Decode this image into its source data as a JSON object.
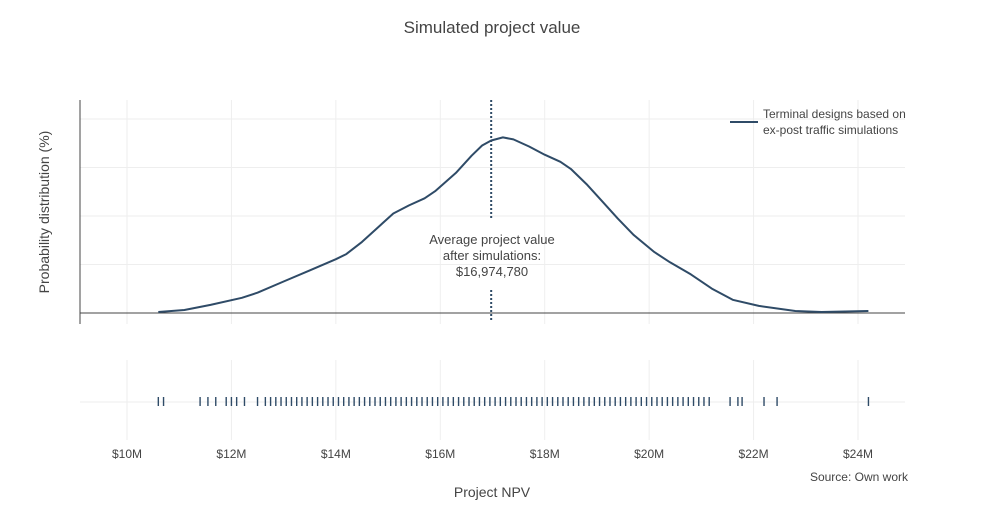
{
  "chart_data": {
    "type": "line",
    "title": "Simulated project value",
    "xlabel": "Project NPV",
    "ylabel": "Probability distribution (%)",
    "xlim": [
      9100000,
      24900000
    ],
    "ylim": [
      0,
      1
    ],
    "x_ticks": [
      10000000,
      12000000,
      14000000,
      16000000,
      18000000,
      20000000,
      22000000,
      24000000
    ],
    "x_tick_labels": [
      "$10M",
      "$12M",
      "$14M",
      "$16M",
      "$18M",
      "$20M",
      "$22M",
      "$24M"
    ],
    "y_tick_labels_visible": false,
    "grid": true,
    "legend_position": "top-right",
    "line_color": "#2f4b67",
    "series": [
      {
        "name": "Terminal designs based on ex-post traffic simulations",
        "x": [
          10600000,
          11100000,
          11600000,
          12200000,
          12500000,
          13000000,
          13500000,
          14000000,
          14200000,
          14500000,
          14800000,
          15100000,
          15400000,
          15700000,
          15900000,
          16300000,
          16600000,
          16800000,
          16974780,
          17200000,
          17400000,
          17700000,
          18000000,
          18300000,
          18500000,
          18800000,
          19100000,
          19400000,
          19700000,
          20100000,
          20400000,
          20800000,
          21200000,
          21600000,
          22100000,
          22800000,
          23300000,
          24200000
        ],
        "y": [
          0.005,
          0.015,
          0.04,
          0.075,
          0.1,
          0.155,
          0.21,
          0.265,
          0.29,
          0.35,
          0.42,
          0.49,
          0.53,
          0.565,
          0.6,
          0.69,
          0.775,
          0.825,
          0.85,
          0.865,
          0.855,
          0.82,
          0.78,
          0.745,
          0.71,
          0.635,
          0.55,
          0.465,
          0.385,
          0.3,
          0.25,
          0.19,
          0.12,
          0.065,
          0.035,
          0.01,
          0.005,
          0.01
        ]
      }
    ],
    "rug_x": [
      10600000,
      10700000,
      11400000,
      11550000,
      11700000,
      11900000,
      12000000,
      12100000,
      12250000,
      12500000,
      12650000,
      12750000,
      12850000,
      12950000,
      13050000,
      13150000,
      13250000,
      13350000,
      13450000,
      13550000,
      13650000,
      13750000,
      13850000,
      13950000,
      14050000,
      14150000,
      14250000,
      14350000,
      14450000,
      14550000,
      14650000,
      14750000,
      14850000,
      14950000,
      15050000,
      15150000,
      15250000,
      15350000,
      15450000,
      15550000,
      15650000,
      15750000,
      15850000,
      15950000,
      16050000,
      16150000,
      16250000,
      16350000,
      16450000,
      16550000,
      16650000,
      16750000,
      16850000,
      16950000,
      17050000,
      17150000,
      17250000,
      17350000,
      17450000,
      17550000,
      17650000,
      17750000,
      17850000,
      17950000,
      18050000,
      18150000,
      18250000,
      18350000,
      18450000,
      18550000,
      18650000,
      18750000,
      18850000,
      18950000,
      19050000,
      19150000,
      19250000,
      19350000,
      19450000,
      19550000,
      19650000,
      19750000,
      19850000,
      19950000,
      20050000,
      20150000,
      20250000,
      20350000,
      20450000,
      20550000,
      20650000,
      20750000,
      20850000,
      20950000,
      21050000,
      21150000,
      21550000,
      21700000,
      21780000,
      22200000,
      22450000,
      24200000
    ],
    "average_line": {
      "x": 16974780,
      "annotation": [
        "Average project value",
        "after simulations:",
        "$16,974,780"
      ]
    },
    "source_note": "Source: Own work"
  }
}
